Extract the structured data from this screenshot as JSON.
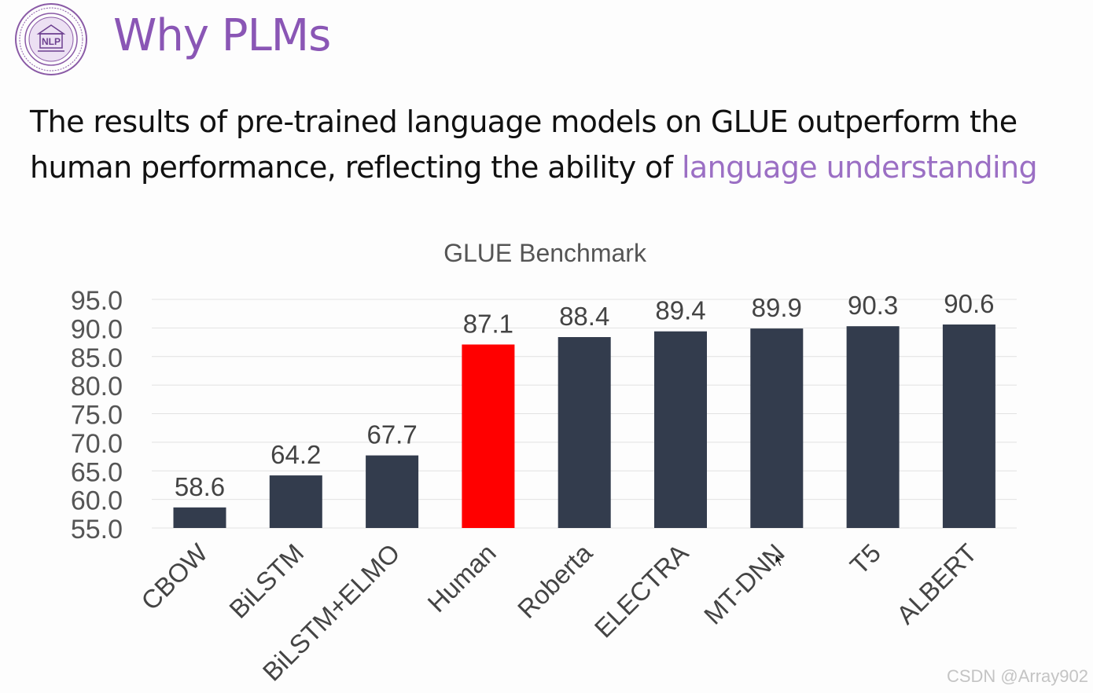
{
  "header": {
    "logo_text": "NLP",
    "title": "Why PLMs"
  },
  "subtitle": {
    "line1": "The results of pre-trained language models on GLUE outperform the",
    "line2_prefix": "human performance, reflecting the ability of ",
    "line2_highlight": "language understanding"
  },
  "chart_data": {
    "type": "bar",
    "title": "GLUE Benchmark",
    "xlabel": "",
    "ylabel": "",
    "ylim": [
      55.0,
      95.0
    ],
    "yticks": [
      "55.0",
      "60.0",
      "65.0",
      "70.0",
      "75.0",
      "80.0",
      "85.0",
      "90.0",
      "95.0"
    ],
    "grid": true,
    "categories": [
      "CBOW",
      "BiLSTM",
      "BiLSTM+ELMO",
      "Human",
      "Roberta",
      "ELECTRA",
      "MT-DNN",
      "T5",
      "ALBERT"
    ],
    "values": [
      58.6,
      64.2,
      67.7,
      87.1,
      88.4,
      89.4,
      89.9,
      90.3,
      90.6
    ],
    "data_labels": [
      "58.6",
      "64.2",
      "67.7",
      "87.1",
      "88.4",
      "89.4",
      "89.9",
      "90.3",
      "90.6"
    ],
    "colors": {
      "default_bar": "#333c4d",
      "highlight_bar": "#ff0000",
      "highlight_category": "Human"
    }
  },
  "watermark": "CSDN @Array902"
}
